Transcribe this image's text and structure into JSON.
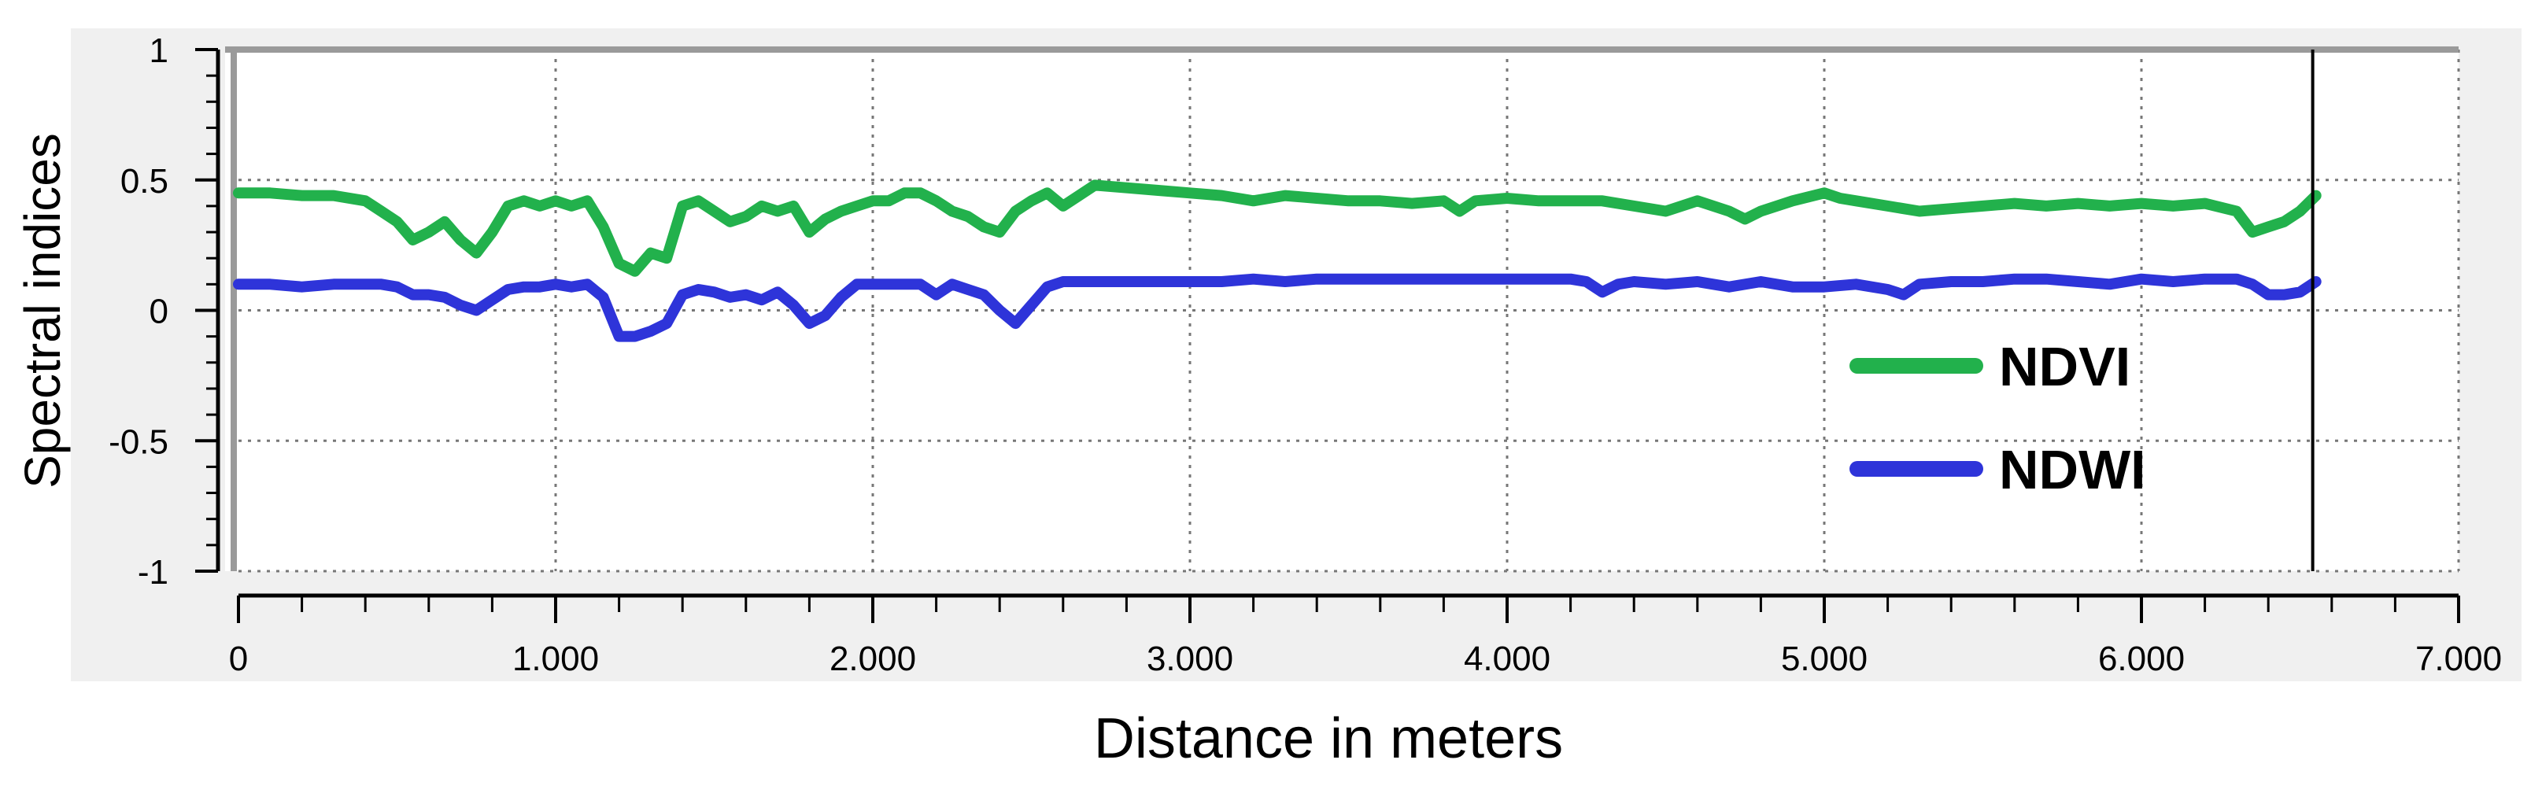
{
  "chart_data": {
    "type": "line",
    "title": "",
    "xlabel": "Distance in meters",
    "ylabel": "Spectral indices",
    "xlim": [
      0,
      7000
    ],
    "ylim": [
      -1,
      1
    ],
    "x_ticks": [
      0,
      1000,
      2000,
      3000,
      4000,
      5000,
      6000,
      7000
    ],
    "x_tick_labels": [
      "0",
      "1.000",
      "2.000",
      "3.000",
      "4.000",
      "5.000",
      "6.000",
      "7.000"
    ],
    "y_ticks": [
      1,
      0.5,
      0,
      -0.5,
      -1
    ],
    "y_tick_labels": [
      "1",
      "0.5",
      "0",
      "-0.5",
      "-1"
    ],
    "grid": true,
    "legend_position": "bottom-right",
    "marker_line_x": 6540,
    "series": [
      {
        "name": "NDVI",
        "color": "#22b14c",
        "x": [
          0,
          100,
          200,
          300,
          400,
          450,
          500,
          550,
          600,
          650,
          700,
          750,
          800,
          850,
          900,
          950,
          1000,
          1050,
          1100,
          1150,
          1200,
          1250,
          1300,
          1350,
          1400,
          1450,
          1500,
          1550,
          1600,
          1650,
          1700,
          1750,
          1800,
          1850,
          1900,
          1950,
          2000,
          2050,
          2100,
          2150,
          2200,
          2250,
          2300,
          2350,
          2400,
          2450,
          2500,
          2550,
          2600,
          2650,
          2700,
          2800,
          2900,
          3000,
          3100,
          3200,
          3300,
          3400,
          3500,
          3600,
          3700,
          3800,
          3850,
          3900,
          4000,
          4100,
          4200,
          4300,
          4400,
          4500,
          4600,
          4700,
          4750,
          4800,
          4900,
          5000,
          5050,
          5100,
          5200,
          5300,
          5400,
          5500,
          5600,
          5700,
          5800,
          5900,
          6000,
          6100,
          6200,
          6300,
          6350,
          6400,
          6450,
          6500,
          6550
        ],
        "values": [
          0.45,
          0.45,
          0.44,
          0.44,
          0.42,
          0.38,
          0.34,
          0.27,
          0.3,
          0.34,
          0.27,
          0.22,
          0.3,
          0.4,
          0.42,
          0.4,
          0.42,
          0.4,
          0.42,
          0.32,
          0.18,
          0.15,
          0.22,
          0.2,
          0.4,
          0.42,
          0.38,
          0.34,
          0.36,
          0.4,
          0.38,
          0.4,
          0.3,
          0.35,
          0.38,
          0.4,
          0.42,
          0.42,
          0.45,
          0.45,
          0.42,
          0.38,
          0.36,
          0.32,
          0.3,
          0.38,
          0.42,
          0.45,
          0.4,
          0.44,
          0.48,
          0.47,
          0.46,
          0.45,
          0.44,
          0.42,
          0.44,
          0.43,
          0.42,
          0.42,
          0.41,
          0.42,
          0.38,
          0.42,
          0.43,
          0.42,
          0.42,
          0.42,
          0.4,
          0.38,
          0.42,
          0.38,
          0.35,
          0.38,
          0.42,
          0.45,
          0.43,
          0.42,
          0.4,
          0.38,
          0.39,
          0.4,
          0.41,
          0.4,
          0.41,
          0.4,
          0.41,
          0.4,
          0.41,
          0.38,
          0.3,
          0.32,
          0.34,
          0.38,
          0.44
        ]
      },
      {
        "name": "NDWI",
        "color": "#2e34d9",
        "x": [
          0,
          100,
          200,
          300,
          400,
          450,
          500,
          550,
          600,
          650,
          700,
          750,
          800,
          850,
          900,
          950,
          1000,
          1050,
          1100,
          1150,
          1200,
          1250,
          1300,
          1350,
          1400,
          1450,
          1500,
          1550,
          1600,
          1650,
          1700,
          1750,
          1800,
          1850,
          1900,
          1950,
          2000,
          2050,
          2100,
          2150,
          2200,
          2250,
          2300,
          2350,
          2400,
          2450,
          2500,
          2550,
          2600,
          2650,
          2700,
          2800,
          2900,
          3000,
          3100,
          3200,
          3300,
          3400,
          3500,
          3600,
          3700,
          3800,
          3900,
          4000,
          4100,
          4200,
          4250,
          4300,
          4350,
          4400,
          4500,
          4600,
          4700,
          4800,
          4900,
          5000,
          5100,
          5200,
          5250,
          5300,
          5400,
          5500,
          5600,
          5700,
          5800,
          5900,
          6000,
          6100,
          6200,
          6300,
          6350,
          6400,
          6450,
          6500,
          6550
        ],
        "values": [
          0.1,
          0.1,
          0.09,
          0.1,
          0.1,
          0.1,
          0.09,
          0.06,
          0.06,
          0.05,
          0.02,
          0.0,
          0.04,
          0.08,
          0.09,
          0.09,
          0.1,
          0.09,
          0.1,
          0.05,
          -0.1,
          -0.1,
          -0.08,
          -0.05,
          0.06,
          0.08,
          0.07,
          0.05,
          0.06,
          0.04,
          0.07,
          0.02,
          -0.05,
          -0.02,
          0.05,
          0.1,
          0.1,
          0.1,
          0.1,
          0.1,
          0.06,
          0.1,
          0.08,
          0.06,
          0.0,
          -0.05,
          0.02,
          0.09,
          0.11,
          0.11,
          0.11,
          0.11,
          0.11,
          0.11,
          0.11,
          0.12,
          0.11,
          0.12,
          0.12,
          0.12,
          0.12,
          0.12,
          0.12,
          0.12,
          0.12,
          0.12,
          0.11,
          0.07,
          0.1,
          0.11,
          0.1,
          0.11,
          0.09,
          0.11,
          0.09,
          0.09,
          0.1,
          0.08,
          0.06,
          0.1,
          0.11,
          0.11,
          0.12,
          0.12,
          0.11,
          0.1,
          0.12,
          0.11,
          0.12,
          0.12,
          0.1,
          0.06,
          0.06,
          0.07,
          0.11
        ]
      }
    ]
  }
}
